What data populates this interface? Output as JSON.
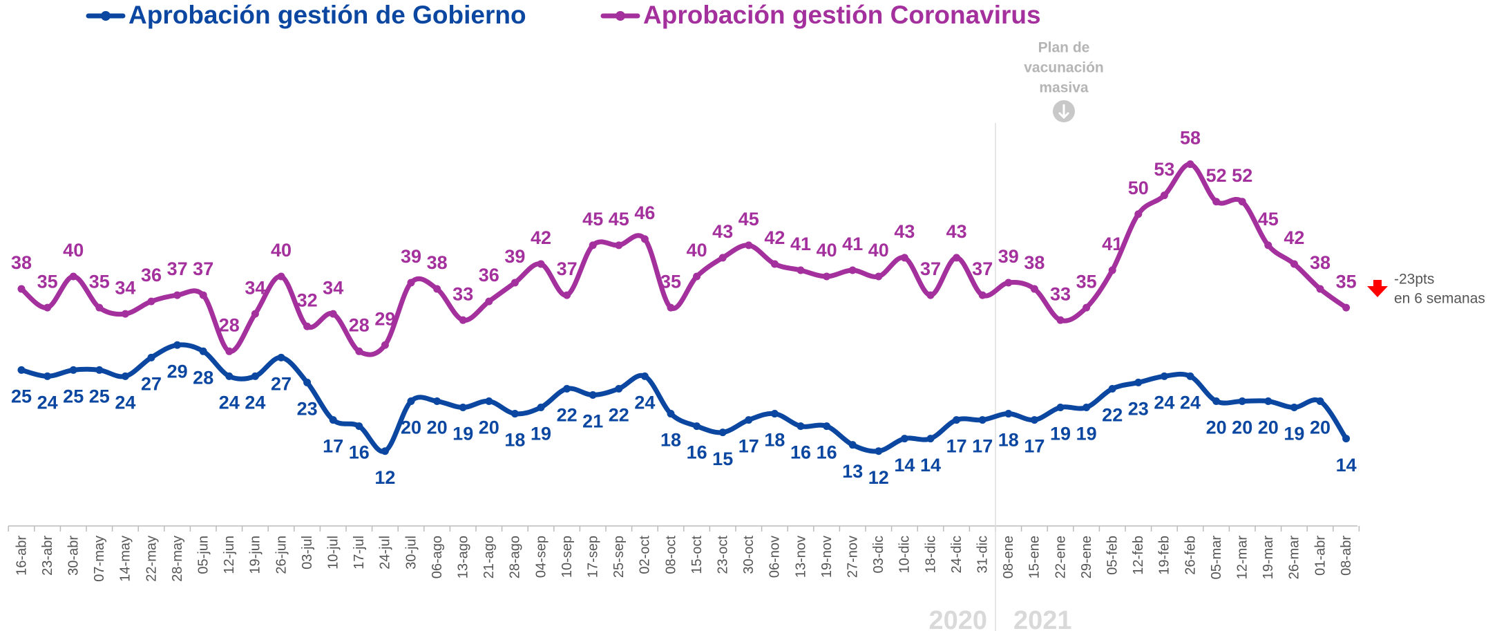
{
  "chart_data": {
    "type": "line",
    "categories": [
      "16-abr",
      "23-abr",
      "30-abr",
      "07-may",
      "14-may",
      "22-may",
      "28-may",
      "05-jun",
      "12-jun",
      "19-jun",
      "26-jun",
      "03-jul",
      "10-jul",
      "17-jul",
      "24-jul",
      "30-jul",
      "06-ago",
      "13-ago",
      "21-ago",
      "28-ago",
      "04-sep",
      "10-sep",
      "17-sep",
      "25-sep",
      "02-oct",
      "08-oct",
      "15-oct",
      "23-oct",
      "30-oct",
      "06-nov",
      "13-nov",
      "19-nov",
      "27-nov",
      "03-dic",
      "10-dic",
      "18-dic",
      "24-dic",
      "31-dic",
      "08-ene",
      "15-ene",
      "22-ene",
      "29-ene",
      "05-feb",
      "12-feb",
      "19-feb",
      "26-feb",
      "05-mar",
      "12-mar",
      "19-mar",
      "26-mar",
      "01-abr",
      "08-abr"
    ],
    "series": [
      {
        "name": "Aprobación gestión de Gobierno",
        "color": "#0b47a1",
        "values": [
          25,
          24,
          25,
          25,
          24,
          27,
          29,
          28,
          24,
          24,
          27,
          23,
          17,
          16,
          12,
          20,
          20,
          19,
          20,
          18,
          19,
          22,
          21,
          22,
          24,
          18,
          16,
          15,
          17,
          18,
          16,
          16,
          13,
          12,
          14,
          14,
          17,
          17,
          18,
          17,
          19,
          19,
          22,
          23,
          24,
          24,
          20,
          20,
          20,
          19,
          20,
          14
        ]
      },
      {
        "name": "Aprobación gestión Coronavirus",
        "color": "#a3309c",
        "values": [
          38,
          35,
          40,
          35,
          34,
          36,
          37,
          37,
          28,
          34,
          40,
          32,
          34,
          28,
          29,
          39,
          38,
          33,
          36,
          39,
          42,
          37,
          45,
          45,
          46,
          35,
          40,
          43,
          45,
          42,
          41,
          40,
          41,
          40,
          43,
          37,
          43,
          37,
          39,
          38,
          33,
          35,
          41,
          50,
          53,
          58,
          52,
          52,
          45,
          42,
          38,
          35
        ]
      }
    ],
    "ylim": [
      0,
      80
    ],
    "annotations": {
      "vaccine_plan": [
        "Plan de",
        "vacunación",
        "masiva"
      ],
      "change": [
        "-23pts",
        "en 6 semanas"
      ],
      "years": [
        "2020",
        "2021"
      ]
    }
  }
}
